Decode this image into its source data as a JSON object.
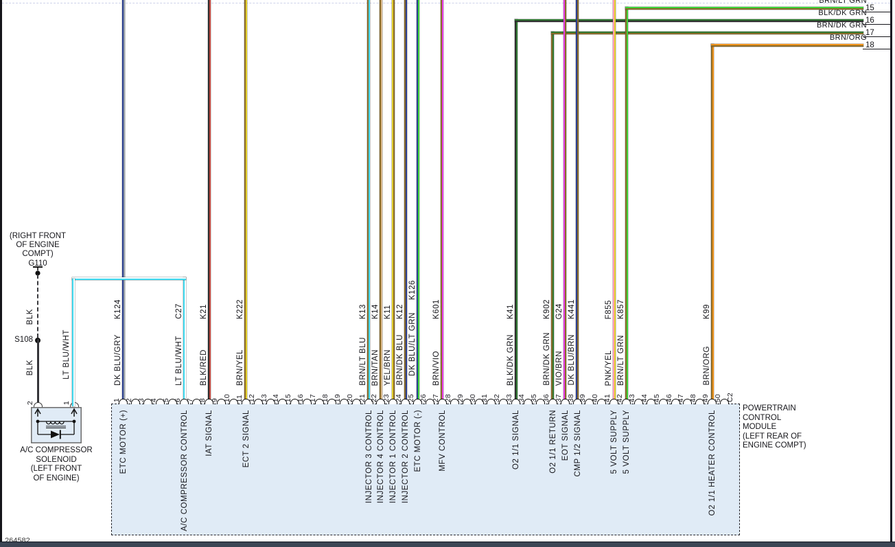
{
  "diagram": {
    "footer_code": "264582",
    "ground": {
      "location_lines": [
        "(RIGHT FRONT",
        "OF ENGINE",
        "COMPT)"
      ],
      "id": "G110",
      "wire_color": "BLK",
      "splice": "S108"
    },
    "solenoid": {
      "name_lines": [
        "A/C COMPRESSOR",
        "SOLENOID",
        "(LEFT FRONT",
        "OF ENGINE)"
      ],
      "pin_left": "2",
      "pin_right": "1",
      "left_wire_color": "BLK",
      "right_wire_color": "LT BLU/WHT"
    },
    "pcm": {
      "name_lines": [
        "POWERTRAIN",
        "CONTROL",
        "MODULE",
        "(LEFT REAR OF",
        "ENGINE COMPT)"
      ],
      "connector": "C2",
      "pin_count": 50
    },
    "circuits": [
      {
        "pin": 1,
        "color": "DK BLU/GRY",
        "code": "K124",
        "signal": "ETC MOTOR (+)",
        "route": "top"
      },
      {
        "pin": 6,
        "color": "LT BLU/WHT",
        "code": "C27",
        "signal": "A/C COMPRESSOR CONTROL",
        "route": "ac"
      },
      {
        "pin": 8,
        "color": "BLK/RED",
        "code": "K21",
        "signal": "IAT SIGNAL",
        "route": "top"
      },
      {
        "pin": 11,
        "color": "BRN/YEL",
        "code": "K222",
        "signal": "ECT 2 SIGNAL",
        "route": "top"
      },
      {
        "pin": 21,
        "color": "BRN/LT BLU",
        "code": "K13",
        "signal": "INJECTOR 3 CONTROL",
        "route": "top"
      },
      {
        "pin": 22,
        "color": "BRN/TAN",
        "code": "K14",
        "signal": "INJECTOR 4 CONTROL",
        "route": "top"
      },
      {
        "pin": 23,
        "color": "YEL/BRN",
        "code": "K11",
        "signal": "INJECTOR 1 CONTROL",
        "route": "top"
      },
      {
        "pin": 24,
        "color": "BRN/DK BLU",
        "code": "K12",
        "signal": "INJECTOR 2 CONTROL",
        "route": "top"
      },
      {
        "pin": 25,
        "color": "DK BLU/LT GRN",
        "code": "K126",
        "signal": "ETC MOTOR (-)",
        "route": "top",
        "label_dy": -14
      },
      {
        "pin": 27,
        "color": "BRN/VIO",
        "code": "K601",
        "signal": "MFV CONTROL",
        "route": "top"
      },
      {
        "pin": 33,
        "color": "BLK/DK GRN",
        "code": "K41",
        "signal": "O2 1/1 SIGNAL",
        "route": "exit"
      },
      {
        "pin": 36,
        "color": "BRN/DK GRN",
        "code": "K902",
        "signal": "O2 1/1 RETURN",
        "route": "exit"
      },
      {
        "pin": 37,
        "color": "VIO/BRN",
        "code": "G24",
        "signal": "EOT SIGNAL",
        "route": "top"
      },
      {
        "pin": 38,
        "color": "DK BLU/BRN",
        "code": "K441",
        "signal": "CMP 1/2 SIGNAL",
        "route": "top"
      },
      {
        "pin": 41,
        "color": "PNK/YEL",
        "code": "F855",
        "signal": "5 VOLT SUPPLY",
        "route": "top"
      },
      {
        "pin": 42,
        "color": "BRN/LT GRN",
        "code": "K857",
        "signal": "5 VOLT SUPPLY",
        "route": "exit"
      },
      {
        "pin": 49,
        "color": "BRN/ORG",
        "code": "K99",
        "signal": "O2 1/1 HEATER CONTROL",
        "route": "exit"
      }
    ],
    "exits": [
      {
        "num": "15",
        "label": "BRN/LT GRN",
        "pin": 42,
        "label_clipped": true
      },
      {
        "num": "16",
        "label": "BLK/DK GRN",
        "pin": 33
      },
      {
        "num": "17",
        "label": "BRN/DK GRN",
        "pin": 36
      },
      {
        "num": "18",
        "label": "BRN/ORG",
        "pin": 49
      }
    ],
    "palette": {
      "BLK": "#2d2d2d",
      "RED": "#c64a42",
      "BRN": "#8a6a28",
      "YEL": "#e2ce2a",
      "DK BLU": "#2b3f90",
      "GRY": "#9aa2ab",
      "LT BLU": "#3fd9ef",
      "WHT": "#f2fdff",
      "TAN": "#d8b88a",
      "LT GRN": "#3ed23a",
      "DK GRN": "#317a33",
      "VIO": "#e83be8",
      "PNK": "#ff9db6",
      "ORG": "#f2951d"
    }
  }
}
